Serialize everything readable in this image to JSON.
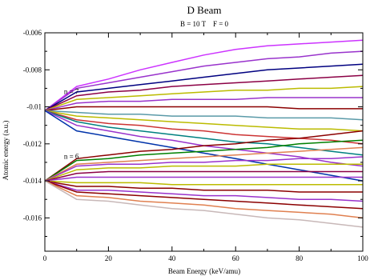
{
  "chart_data": {
    "type": "line",
    "title": "D Beam",
    "subtitle": "B = 10 T    F = 0",
    "xlabel": "Beam Energy (keV/amu)",
    "ylabel": "Atomic energy (a.u.)",
    "xlim": [
      0,
      100
    ],
    "ylim": [
      -0.0178,
      -0.006
    ],
    "xticks": [
      0,
      20,
      40,
      60,
      80,
      100
    ],
    "yticks": [
      -0.016,
      -0.014,
      -0.012,
      -0.01,
      -0.008,
      -0.006
    ],
    "xtick_labels": [
      "0",
      "20",
      "40",
      "60",
      "80",
      "100"
    ],
    "ytick_labels": [
      "-0.016",
      "-0.014",
      "-0.012",
      "-0.01",
      "-0.008",
      "-0.006"
    ],
    "grid": false,
    "annotations": [
      {
        "text": "n = 7",
        "x": 6,
        "y": -0.0093
      },
      {
        "text": "n = 6",
        "x": 6,
        "y": -0.0128
      }
    ],
    "x": [
      0,
      10,
      20,
      30,
      40,
      50,
      60,
      70,
      80,
      90,
      100
    ],
    "series": [
      {
        "color": "#cc33ff",
        "values": [
          -0.0102,
          -0.0089,
          -0.0085,
          -0.008,
          -0.0076,
          -0.0072,
          -0.0069,
          -0.0067,
          -0.0066,
          -0.0065,
          -0.0064
        ]
      },
      {
        "color": "#9933cc",
        "values": [
          -0.0102,
          -0.009,
          -0.0087,
          -0.0084,
          -0.0081,
          -0.0078,
          -0.0076,
          -0.0074,
          -0.0073,
          -0.0071,
          -0.007
        ]
      },
      {
        "color": "#000080",
        "values": [
          -0.0102,
          -0.0092,
          -0.009,
          -0.0088,
          -0.0086,
          -0.0084,
          -0.0082,
          -0.008,
          -0.0079,
          -0.0078,
          -0.0077
        ]
      },
      {
        "color": "#8b0045",
        "values": [
          -0.0102,
          -0.0094,
          -0.0092,
          -0.0091,
          -0.0089,
          -0.0088,
          -0.0087,
          -0.0086,
          -0.0085,
          -0.0084,
          -0.0083
        ]
      },
      {
        "color": "#bbbb00",
        "values": [
          -0.0102,
          -0.0096,
          -0.0095,
          -0.0094,
          -0.0093,
          -0.0092,
          -0.0091,
          -0.0091,
          -0.009,
          -0.009,
          -0.0089
        ]
      },
      {
        "color": "#9933cc",
        "values": [
          -0.0102,
          -0.0098,
          -0.0097,
          -0.0097,
          -0.0096,
          -0.0096,
          -0.0096,
          -0.0095,
          -0.0095,
          -0.0095,
          -0.0095
        ]
      },
      {
        "color": "#8b0000",
        "values": [
          -0.0102,
          -0.01,
          -0.01,
          -0.01,
          -0.01,
          -0.01,
          -0.01,
          -0.01,
          -0.0101,
          -0.0101,
          -0.0101
        ]
      },
      {
        "color": "#5a9aa8",
        "values": [
          -0.0102,
          -0.0103,
          -0.0104,
          -0.0104,
          -0.0105,
          -0.0105,
          -0.0105,
          -0.0106,
          -0.0106,
          -0.0106,
          -0.0107
        ]
      },
      {
        "color": "#bbbb00",
        "values": [
          -0.0102,
          -0.0105,
          -0.0106,
          -0.0107,
          -0.0108,
          -0.0109,
          -0.011,
          -0.0111,
          -0.0112,
          -0.0112,
          -0.0113
        ]
      },
      {
        "color": "#cc3333",
        "values": [
          -0.0102,
          -0.0107,
          -0.0109,
          -0.011,
          -0.0112,
          -0.0113,
          -0.0115,
          -0.0116,
          -0.0117,
          -0.0118,
          -0.012
        ]
      },
      {
        "color": "#008080",
        "values": [
          -0.0102,
          -0.0108,
          -0.0111,
          -0.0113,
          -0.0115,
          -0.0117,
          -0.0119,
          -0.012,
          -0.0122,
          -0.0124,
          -0.0126
        ]
      },
      {
        "color": "#9933cc",
        "values": [
          -0.0102,
          -0.011,
          -0.0113,
          -0.0116,
          -0.0118,
          -0.0121,
          -0.0123,
          -0.0125,
          -0.0127,
          -0.013,
          -0.0132
        ]
      },
      {
        "color": "#0033aa",
        "values": [
          -0.0102,
          -0.0113,
          -0.0116,
          -0.0119,
          -0.0122,
          -0.0125,
          -0.0128,
          -0.0131,
          -0.0134,
          -0.0137,
          -0.014
        ]
      },
      {
        "color": "#8b0000",
        "values": [
          -0.014,
          -0.0128,
          -0.0126,
          -0.0124,
          -0.0123,
          -0.0121,
          -0.012,
          -0.0118,
          -0.0117,
          -0.0115,
          -0.0113
        ]
      },
      {
        "color": "#008000",
        "values": [
          -0.014,
          -0.0129,
          -0.0128,
          -0.0126,
          -0.0125,
          -0.0124,
          -0.0123,
          -0.0122,
          -0.012,
          -0.0119,
          -0.0118
        ]
      },
      {
        "color": "#e08050",
        "values": [
          -0.014,
          -0.0131,
          -0.013,
          -0.0129,
          -0.0128,
          -0.0127,
          -0.0126,
          -0.0125,
          -0.0124,
          -0.0123,
          -0.0122
        ]
      },
      {
        "color": "#9933cc",
        "values": [
          -0.014,
          -0.0132,
          -0.0131,
          -0.0131,
          -0.013,
          -0.013,
          -0.0129,
          -0.0129,
          -0.0128,
          -0.0128,
          -0.0127
        ]
      },
      {
        "color": "#bbbb00",
        "values": [
          -0.014,
          -0.0134,
          -0.0133,
          -0.0133,
          -0.0132,
          -0.0132,
          -0.0132,
          -0.0131,
          -0.0131,
          -0.0131,
          -0.0131
        ]
      },
      {
        "color": "#8b0045",
        "values": [
          -0.014,
          -0.0136,
          -0.0135,
          -0.0135,
          -0.0135,
          -0.0135,
          -0.0135,
          -0.0135,
          -0.0135,
          -0.0135,
          -0.0135
        ]
      },
      {
        "color": "#9933cc",
        "values": [
          -0.014,
          -0.0138,
          -0.0138,
          -0.0138,
          -0.0138,
          -0.0138,
          -0.0138,
          -0.0138,
          -0.0138,
          -0.0138,
          -0.0138
        ]
      },
      {
        "color": "#bbbb00",
        "values": [
          -0.014,
          -0.0141,
          -0.0141,
          -0.0141,
          -0.0142,
          -0.0142,
          -0.0142,
          -0.0142,
          -0.0142,
          -0.0142,
          -0.0142
        ]
      },
      {
        "color": "#8b0000",
        "values": [
          -0.014,
          -0.0143,
          -0.0143,
          -0.0144,
          -0.0144,
          -0.0145,
          -0.0145,
          -0.0145,
          -0.0146,
          -0.0146,
          -0.0146
        ]
      },
      {
        "color": "#9933cc",
        "values": [
          -0.014,
          -0.0145,
          -0.0145,
          -0.0146,
          -0.0147,
          -0.0148,
          -0.0148,
          -0.0149,
          -0.015,
          -0.015,
          -0.0151
        ]
      },
      {
        "color": "#8b0000",
        "values": [
          -0.014,
          -0.0146,
          -0.0147,
          -0.0148,
          -0.0149,
          -0.015,
          -0.0151,
          -0.0152,
          -0.0153,
          -0.0154,
          -0.0155
        ]
      },
      {
        "color": "#e08050",
        "values": [
          -0.014,
          -0.0148,
          -0.0149,
          -0.0151,
          -0.0152,
          -0.0153,
          -0.0155,
          -0.0156,
          -0.0157,
          -0.0158,
          -0.016
        ]
      },
      {
        "color": "#c8b8b8",
        "values": [
          -0.014,
          -0.015,
          -0.0151,
          -0.0153,
          -0.0155,
          -0.0156,
          -0.0158,
          -0.016,
          -0.0161,
          -0.0163,
          -0.0165
        ]
      }
    ]
  }
}
